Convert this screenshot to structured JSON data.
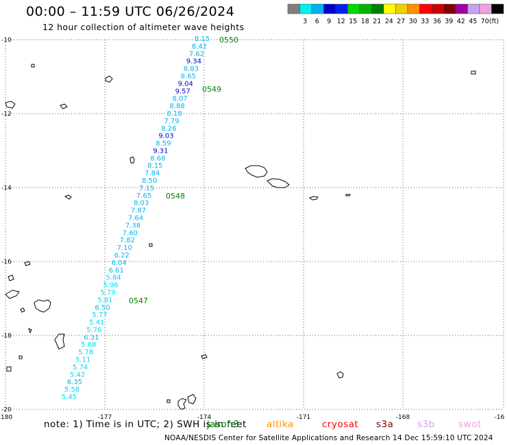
{
  "title": "00:00 – 11:59 UTC 06/26/2024",
  "subtitle": "12 hour collection of altimeter wave heights",
  "legend": {
    "unit": "(ft)",
    "bins": [
      {
        "color": "#808080",
        "label": ""
      },
      {
        "color": "#00f0f0",
        "label": "3"
      },
      {
        "color": "#00b4f0",
        "label": "6"
      },
      {
        "color": "#0000c8",
        "label": "9"
      },
      {
        "color": "#0020f0",
        "label": "12"
      },
      {
        "color": "#00d800",
        "label": "15"
      },
      {
        "color": "#00b400",
        "label": "18"
      },
      {
        "color": "#008000",
        "label": "21"
      },
      {
        "color": "#ffff00",
        "label": "24"
      },
      {
        "color": "#f0d000",
        "label": "27"
      },
      {
        "color": "#ff9000",
        "label": "30"
      },
      {
        "color": "#ff0000",
        "label": "33"
      },
      {
        "color": "#c80000",
        "label": "36"
      },
      {
        "color": "#800000",
        "label": "39"
      },
      {
        "color": "#a000a0",
        "label": "42"
      },
      {
        "color": "#c8a0f0",
        "label": "45"
      },
      {
        "color": "#f0a0e0",
        "label": "70"
      },
      {
        "color": "#000000",
        "label": ""
      }
    ]
  },
  "axes": {
    "lon_ticks": [
      "-180",
      "-177",
      "-174",
      "-171",
      "-168",
      "-16"
    ],
    "lat_ticks": [
      "-10",
      "-12",
      "-14",
      "-16",
      "-18",
      "-20"
    ]
  },
  "track_times": [
    {
      "label": "0550"
    },
    {
      "label": "0549"
    },
    {
      "label": "0548"
    },
    {
      "label": "0547"
    }
  ],
  "wave_heights": [
    {
      "value": "8.15",
      "color": "#00b4f0"
    },
    {
      "value": "8.42",
      "color": "#00b4f0"
    },
    {
      "value": "7.62",
      "color": "#00b4f0"
    },
    {
      "value": "9.34",
      "color": "#0000c8"
    },
    {
      "value": "8.83",
      "color": "#00b4f0"
    },
    {
      "value": "8.65",
      "color": "#00b4f0"
    },
    {
      "value": "9.04",
      "color": "#0000c8"
    },
    {
      "value": "9.57",
      "color": "#0000c8"
    },
    {
      "value": "8.07",
      "color": "#00b4f0"
    },
    {
      "value": "8.88",
      "color": "#00b4f0"
    },
    {
      "value": "8.18",
      "color": "#00b4f0"
    },
    {
      "value": "7.79",
      "color": "#00b4f0"
    },
    {
      "value": "8.26",
      "color": "#00b4f0"
    },
    {
      "value": "9.03",
      "color": "#0000c8"
    },
    {
      "value": "8.59",
      "color": "#00b4f0"
    },
    {
      "value": "9.31",
      "color": "#0000c8"
    },
    {
      "value": "8.68",
      "color": "#00b4f0"
    },
    {
      "value": "8.15",
      "color": "#00b4f0"
    },
    {
      "value": "7.84",
      "color": "#00b4f0"
    },
    {
      "value": "8.50",
      "color": "#00b4f0"
    },
    {
      "value": "7.15",
      "color": "#00b4f0"
    },
    {
      "value": "7.65",
      "color": "#00b4f0"
    },
    {
      "value": "8.03",
      "color": "#00b4f0"
    },
    {
      "value": "7.87",
      "color": "#00b4f0"
    },
    {
      "value": "7.64",
      "color": "#00b4f0"
    },
    {
      "value": "7.38",
      "color": "#00b4f0"
    },
    {
      "value": "7.60",
      "color": "#00b4f0"
    },
    {
      "value": "7.82",
      "color": "#00b4f0"
    },
    {
      "value": "7.10",
      "color": "#00b4f0"
    },
    {
      "value": "6.22",
      "color": "#00b4f0"
    },
    {
      "value": "6.04",
      "color": "#00b4f0"
    },
    {
      "value": "6.61",
      "color": "#00b4f0"
    },
    {
      "value": "5.84",
      "color": "#00d8f0"
    },
    {
      "value": "5.96",
      "color": "#00d8f0"
    },
    {
      "value": "5.79",
      "color": "#00d8f0"
    },
    {
      "value": "5.81",
      "color": "#00d8f0"
    },
    {
      "value": "6.50",
      "color": "#00b4f0"
    },
    {
      "value": "5.77",
      "color": "#00d8f0"
    },
    {
      "value": "5.41",
      "color": "#00d8f0"
    },
    {
      "value": "5.76",
      "color": "#00d8f0"
    },
    {
      "value": "6.31",
      "color": "#00b4f0"
    },
    {
      "value": "5.68",
      "color": "#00d8f0"
    },
    {
      "value": "5.78",
      "color": "#00d8f0"
    },
    {
      "value": "5.11",
      "color": "#00d8f0"
    },
    {
      "value": "5.74",
      "color": "#00d8f0"
    },
    {
      "value": "5.42",
      "color": "#00d8f0"
    },
    {
      "value": "6.35",
      "color": "#00b4f0"
    },
    {
      "value": "5.58",
      "color": "#00d8f0"
    },
    {
      "value": "5.45",
      "color": "#00d8f0"
    }
  ],
  "note": "note: 1) Time is in UTC; 2) SWH is in feet",
  "missions": [
    {
      "name": "jason3",
      "color": "#008000"
    },
    {
      "name": "altika",
      "color": "#ff9000"
    },
    {
      "name": "cryosat",
      "color": "#ff0000"
    },
    {
      "name": "s3a",
      "color": "#800000"
    },
    {
      "name": "s3b",
      "color": "#c8a0f0"
    },
    {
      "name": "swot",
      "color": "#f0a0e0"
    }
  ],
  "footer": "NOAA/NESDIS Center for Satellite Applications and Research     14 Dec 15:59:10 UTC 2024"
}
